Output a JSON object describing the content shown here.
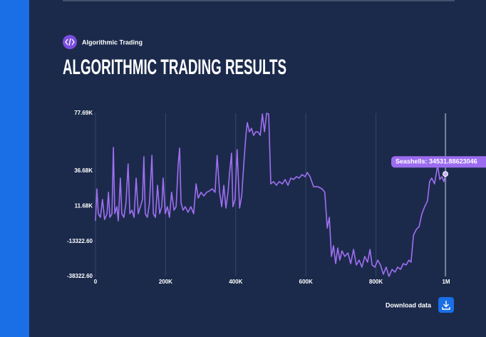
{
  "badge": "Algorithmic Trading",
  "title": "ALGORITHMIC TRADING RESULTS",
  "download": "Download data",
  "chart_data": {
    "type": "line",
    "color": "#a06ff2",
    "grid": true,
    "tooltip": "Seashells: 34531.88623046",
    "xlim": [
      0,
      1000000
    ],
    "ylim": [
      -38322.6,
      77690
    ],
    "xticks": [
      0,
      {
        "value": 200000,
        "label": "200K"
      },
      {
        "value": 400000,
        "label": "400K"
      },
      {
        "value": 600000,
        "label": "600K"
      },
      {
        "value": 800000,
        "label": "800K"
      },
      {
        "value": 1000000,
        "label": "1M"
      }
    ],
    "yticks": [
      {
        "value": -38322.6,
        "label": "-38322.60"
      },
      {
        "value": -13322.6,
        "label": "-13322.60"
      },
      {
        "value": 11677.4,
        "label": "11.68K"
      },
      {
        "value": 36677.4,
        "label": "36.68K"
      },
      {
        "value": 77690,
        "label": "77.69K"
      }
    ],
    "x": [
      0,
      4000,
      8000,
      14000,
      20000,
      26000,
      33000,
      37000,
      41000,
      47000,
      51000,
      55000,
      61000,
      65000,
      71000,
      75000,
      81000,
      87000,
      93000,
      98000,
      104000,
      110000,
      116000,
      122000,
      128000,
      134000,
      138000,
      142000,
      148000,
      154000,
      161000,
      165000,
      171000,
      177000,
      183000,
      189000,
      193000,
      199000,
      205000,
      211000,
      217000,
      224000,
      230000,
      236000,
      240000,
      244000,
      250000,
      256000,
      264000,
      272000,
      280000,
      287000,
      293000,
      301000,
      309000,
      317000,
      325000,
      333000,
      341000,
      347000,
      354000,
      360000,
      366000,
      372000,
      378000,
      382000,
      388000,
      392000,
      398000,
      404000,
      411000,
      417000,
      423000,
      429000,
      433000,
      439000,
      445000,
      451000,
      457000,
      463000,
      470000,
      476000,
      482000,
      488000,
      494000,
      500000,
      508000,
      516000,
      524000,
      533000,
      541000,
      549000,
      557000,
      565000,
      573000,
      581000,
      589000,
      598000,
      604000,
      612000,
      622000,
      634000,
      646000,
      654000,
      661000,
      667000,
      673000,
      679000,
      685000,
      691000,
      697000,
      703000,
      711000,
      720000,
      728000,
      736000,
      744000,
      752000,
      760000,
      768000,
      776000,
      783000,
      789000,
      797000,
      805000,
      813000,
      821000,
      829000,
      837000,
      846000,
      854000,
      862000,
      870000,
      878000,
      886000,
      894000,
      900000,
      907000,
      915000,
      923000,
      931000,
      939000,
      947000,
      953000,
      959000,
      967000,
      976000,
      982000,
      988000,
      994000,
      998000
    ],
    "values": [
      1200,
      23900,
      6300,
      3700,
      16400,
      2200,
      6300,
      21500,
      3700,
      6300,
      53400,
      6300,
      11300,
      1200,
      31600,
      6300,
      3700,
      13900,
      41700,
      6300,
      8800,
      3700,
      31600,
      6300,
      11300,
      16400,
      46800,
      6300,
      3700,
      13900,
      47800,
      6300,
      3700,
      26500,
      6300,
      11300,
      31600,
      6300,
      11300,
      3700,
      21500,
      8800,
      11300,
      41700,
      52900,
      13900,
      8800,
      11300,
      7300,
      11300,
      6300,
      27500,
      17400,
      21500,
      18900,
      21500,
      22500,
      24000,
      21500,
      47800,
      21500,
      11300,
      26500,
      10300,
      21500,
      34100,
      49300,
      11300,
      16400,
      51900,
      10300,
      18900,
      41700,
      62000,
      71100,
      64500,
      67000,
      62000,
      64500,
      64500,
      62000,
      77200,
      64500,
      77690,
      77200,
      27500,
      29100,
      26500,
      29100,
      27500,
      30600,
      26500,
      31600,
      30600,
      32600,
      31600,
      34100,
      32600,
      35600,
      32600,
      25500,
      25500,
      24000,
      21500,
      -3900,
      3700,
      -24100,
      -16500,
      -29200,
      -18100,
      -26700,
      -20100,
      -24100,
      -21600,
      -29200,
      -19100,
      -30200,
      -26700,
      -31700,
      -24100,
      -28200,
      -19100,
      -30200,
      -31700,
      -26700,
      -30200,
      -36800,
      -31700,
      -38300,
      -33300,
      -35300,
      -31700,
      -33300,
      -29200,
      -30200,
      -26700,
      -28200,
      -9000,
      -4900,
      -2900,
      6300,
      11300,
      15400,
      29100,
      31600,
      27500,
      40700,
      30600,
      32600,
      29100,
      34531.886230469
    ]
  }
}
